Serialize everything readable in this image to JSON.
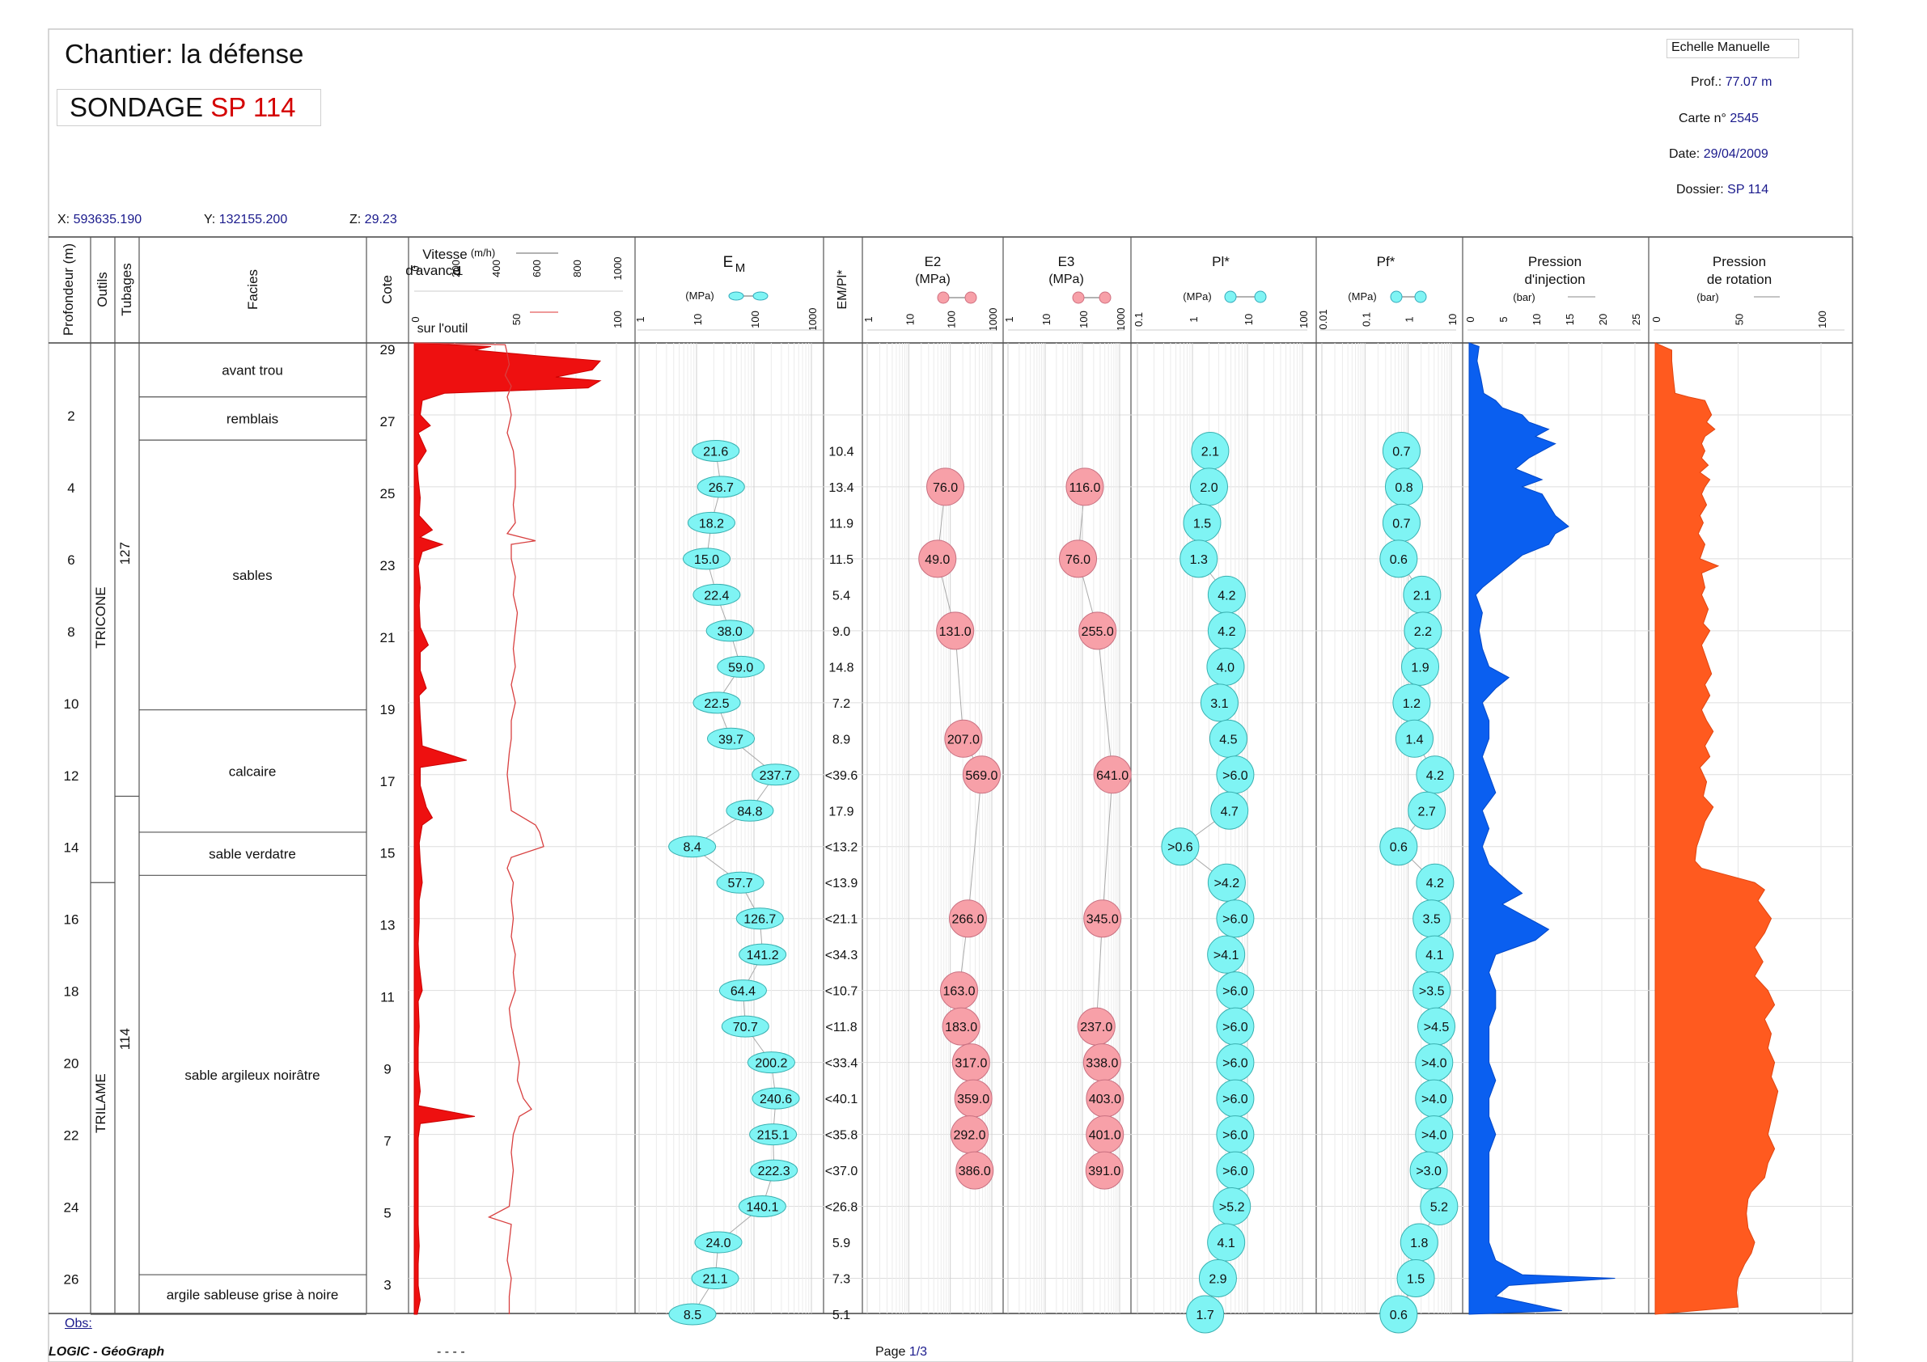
{
  "header": {
    "chantier": "Chantier: la défense",
    "sondage_prefix": "SONDAGE",
    "sondage_id": "SP 114",
    "echelle": "Echelle Manuelle",
    "prof_label": "Prof.:",
    "prof_value": "77.07 m",
    "carte_label": "Carte n°",
    "carte_value": "2545",
    "date_label": "Date:",
    "date_value": "29/04/2009",
    "dossier_label": "Dossier:",
    "dossier_value": "SP 114",
    "x_label": "X:",
    "x_value": "593635.190",
    "y_label": "Y:",
    "y_value": "132155.200",
    "z_label": "Z:",
    "z_value": "29.23"
  },
  "columns": {
    "profondeur": "Profondeur (m)",
    "outils": "Outils",
    "tubages": "Tubages",
    "facies": "Facies",
    "cote": "Cote",
    "vitesse_title": "Vitesse d'avance",
    "vitesse_unit": "(m/h)",
    "vitesse_sub": "1",
    "vitesse_ticks": [
      "0",
      "200",
      "400",
      "600",
      "800",
      "1000"
    ],
    "outil_label": "sur l'outil",
    "outil_ticks": [
      "0",
      "50",
      "100"
    ],
    "em_title": "E",
    "em_sub": "M",
    "em_unit": "(MPa)",
    "log_ticks_4": [
      "1",
      "10",
      "100",
      "1000"
    ],
    "empl_title": "EM/Pl*",
    "e2_title": "E2",
    "e2_unit": "(MPa)",
    "e3_title": "E3",
    "e3_unit": "(MPa)",
    "pl_title": "Pl*",
    "pl_unit": "(MPa)",
    "pl_ticks": [
      "0.1",
      "1",
      "10",
      "100"
    ],
    "pf_title": "Pf*",
    "pf_unit": "(MPa)",
    "pf_ticks": [
      "0.01",
      "0.1",
      "1",
      "10"
    ],
    "pinj_title1": "Pression",
    "pinj_title2": "d'injection",
    "pinj_unit": "(bar)",
    "pinj_ticks": [
      "0",
      "5",
      "10",
      "15",
      "20",
      "25"
    ],
    "prot_title1": "Pression",
    "prot_title2": "de rotation",
    "prot_unit": "(bar)",
    "prot_ticks": [
      "0",
      "50",
      "100"
    ]
  },
  "footer": {
    "obs": "Obs:",
    "software": "LOGIC - GéoGraph",
    "dashes": "- - - -",
    "page_label": "Page",
    "page_value": "1/3"
  },
  "chart_data": {
    "type": "table",
    "depth_range": [
      0,
      27
    ],
    "depth_ticks": [
      "2",
      "4",
      "6",
      "8",
      "10",
      "12",
      "14",
      "16",
      "18",
      "20",
      "22",
      "24",
      "26"
    ],
    "cote_ticks": [
      "29",
      "27",
      "25",
      "23",
      "21",
      "19",
      "17",
      "15",
      "13",
      "11",
      "9",
      "7",
      "5",
      "3"
    ],
    "outils": [
      {
        "name": "TRICONE",
        "from": 0,
        "to": 15
      },
      {
        "name": "TRILAME",
        "from": 15,
        "to": 27
      }
    ],
    "tubages": [
      {
        "name": "127",
        "from": 0,
        "to": 12.6
      },
      {
        "name": "114",
        "from": 12.6,
        "to": 27
      }
    ],
    "facies": [
      {
        "name": "avant trou",
        "from": 0,
        "to": 1.5
      },
      {
        "name": "remblais",
        "from": 1.5,
        "to": 2.7
      },
      {
        "name": "sables",
        "from": 2.7,
        "to": 10.2
      },
      {
        "name": "calcaire",
        "from": 10.2,
        "to": 13.6
      },
      {
        "name": "sable verdatre",
        "from": 13.6,
        "to": 14.8
      },
      {
        "name": "sable argileux noirâtre",
        "from": 14.8,
        "to": 25.9
      },
      {
        "name": "argile sableuse grise à noire",
        "from": 25.9,
        "to": 27
      }
    ],
    "pressiometer": [
      {
        "depth": 3,
        "em": "21.6",
        "ratio": "10.4",
        "e2": "",
        "e3": "",
        "pl": "2.1",
        "pf": "0.7"
      },
      {
        "depth": 4,
        "em": "26.7",
        "ratio": "13.4",
        "e2": "76.0",
        "e3": "116.0",
        "pl": "2.0",
        "pf": "0.8"
      },
      {
        "depth": 5,
        "em": "18.2",
        "ratio": "11.9",
        "e2": "",
        "e3": "",
        "pl": "1.5",
        "pf": "0.7"
      },
      {
        "depth": 6,
        "em": "15.0",
        "ratio": "11.5",
        "e2": "49.0",
        "e3": "76.0",
        "pl": "1.3",
        "pf": "0.6"
      },
      {
        "depth": 7,
        "em": "22.4",
        "ratio": "5.4",
        "e2": "",
        "e3": "",
        "pl": "4.2",
        "pf": "2.1"
      },
      {
        "depth": 8,
        "em": "38.0",
        "ratio": "9.0",
        "e2": "131.0",
        "e3": "255.0",
        "pl": "4.2",
        "pf": "2.2"
      },
      {
        "depth": 9,
        "em": "59.0",
        "ratio": "14.8",
        "e2": "",
        "e3": "",
        "pl": "4.0",
        "pf": "1.9"
      },
      {
        "depth": 10,
        "em": "22.5",
        "ratio": "7.2",
        "e2": "",
        "e3": "",
        "pl": "3.1",
        "pf": "1.2"
      },
      {
        "depth": 11,
        "em": "39.7",
        "ratio": "8.9",
        "e2": "207.0",
        "e3": "",
        "pl": "4.5",
        "pf": "1.4"
      },
      {
        "depth": 12,
        "em": "237.7",
        "ratio": "<39.6",
        "e2": "569.0",
        "e3": "641.0",
        "pl": ">6.0",
        "pf": "4.2"
      },
      {
        "depth": 13,
        "em": "84.8",
        "ratio": "17.9",
        "e2": "",
        "e3": "",
        "pl": "4.7",
        "pf": "2.7"
      },
      {
        "depth": 14,
        "em": "8.4",
        "ratio": "<13.2",
        "e2": "",
        "e3": "",
        "pl": ">0.6",
        "pf": "0.6"
      },
      {
        "depth": 15,
        "em": "57.7",
        "ratio": "<13.9",
        "e2": "",
        "e3": "",
        "pl": ">4.2",
        "pf": "4.2"
      },
      {
        "depth": 16,
        "em": "126.7",
        "ratio": "<21.1",
        "e2": "266.0",
        "e3": "345.0",
        "pl": ">6.0",
        "pf": "3.5"
      },
      {
        "depth": 17,
        "em": "141.2",
        "ratio": "<34.3",
        "e2": "",
        "e3": "",
        "pl": ">4.1",
        "pf": "4.1"
      },
      {
        "depth": 18,
        "em": "64.4",
        "ratio": "<10.7",
        "e2": "163.0",
        "e3": "",
        "pl": ">6.0",
        "pf": ">3.5"
      },
      {
        "depth": 19,
        "em": "70.7",
        "ratio": "<11.8",
        "e2": "183.0",
        "e3": "237.0",
        "pl": ">6.0",
        "pf": ">4.5"
      },
      {
        "depth": 20,
        "em": "200.2",
        "ratio": "<33.4",
        "e2": "317.0",
        "e3": "338.0",
        "pl": ">6.0",
        "pf": ">4.0"
      },
      {
        "depth": 21,
        "em": "240.6",
        "ratio": "<40.1",
        "e2": "359.0",
        "e3": "403.0",
        "pl": ">6.0",
        "pf": ">4.0"
      },
      {
        "depth": 22,
        "em": "215.1",
        "ratio": "<35.8",
        "e2": "292.0",
        "e3": "401.0",
        "pl": ">6.0",
        "pf": ">4.0"
      },
      {
        "depth": 23,
        "em": "222.3",
        "ratio": "<37.0",
        "e2": "386.0",
        "e3": "391.0",
        "pl": ">6.0",
        "pf": ">3.0"
      },
      {
        "depth": 24,
        "em": "140.1",
        "ratio": "<26.8",
        "e2": "",
        "e3": "",
        "pl": ">5.2",
        "pf": "5.2"
      },
      {
        "depth": 25,
        "em": "24.0",
        "ratio": "5.9",
        "e2": "",
        "e3": "",
        "pl": "4.1",
        "pf": "1.8"
      },
      {
        "depth": 26,
        "em": "21.1",
        "ratio": "7.3",
        "e2": "",
        "e3": "",
        "pl": "2.9",
        "pf": "1.5"
      },
      {
        "depth": 27,
        "em": "8.5",
        "ratio": "5.1",
        "e2": "",
        "e3": "",
        "pl": "1.7",
        "pf": "0.6"
      }
    ],
    "vitesse": [
      [
        0,
        0
      ],
      [
        0.1,
        380
      ],
      [
        0.2,
        300
      ],
      [
        0.35,
        600
      ],
      [
        0.5,
        920
      ],
      [
        0.75,
        880
      ],
      [
        0.95,
        700
      ],
      [
        1.05,
        920
      ],
      [
        1.25,
        860
      ],
      [
        1.4,
        150
      ],
      [
        1.6,
        40
      ],
      [
        2,
        30
      ],
      [
        2.3,
        80
      ],
      [
        2.5,
        20
      ],
      [
        3,
        60
      ],
      [
        3.4,
        15
      ],
      [
        3.8,
        20
      ],
      [
        4.3,
        30
      ],
      [
        4.8,
        25
      ],
      [
        5.2,
        90
      ],
      [
        5.4,
        30
      ],
      [
        5.6,
        140
      ],
      [
        5.8,
        40
      ],
      [
        6.2,
        20
      ],
      [
        6.8,
        30
      ],
      [
        7.3,
        25
      ],
      [
        7.9,
        30
      ],
      [
        8.4,
        70
      ],
      [
        8.6,
        30
      ],
      [
        9.1,
        30
      ],
      [
        9.6,
        60
      ],
      [
        9.8,
        25
      ],
      [
        10.4,
        30
      ],
      [
        11.2,
        40
      ],
      [
        11.6,
        260
      ],
      [
        11.8,
        30
      ],
      [
        12.3,
        30
      ],
      [
        12.9,
        60
      ],
      [
        13.2,
        90
      ],
      [
        13.4,
        40
      ],
      [
        13.9,
        25
      ],
      [
        14.4,
        30
      ],
      [
        15,
        40
      ],
      [
        15.5,
        25
      ],
      [
        16.1,
        25
      ],
      [
        16.7,
        20
      ],
      [
        17.3,
        25
      ],
      [
        18,
        40
      ],
      [
        18.3,
        20
      ],
      [
        19,
        25
      ],
      [
        19.6,
        20
      ],
      [
        20.2,
        20
      ],
      [
        20.8,
        30
      ],
      [
        21.2,
        20
      ],
      [
        21.5,
        300
      ],
      [
        21.7,
        30
      ],
      [
        22.1,
        20
      ],
      [
        22.7,
        20
      ],
      [
        23.3,
        20
      ],
      [
        23.9,
        20
      ],
      [
        24.5,
        20
      ],
      [
        25.1,
        25
      ],
      [
        25.6,
        20
      ],
      [
        26.2,
        20
      ],
      [
        26.6,
        30
      ],
      [
        27,
        15
      ]
    ],
    "couple": [
      [
        0,
        0
      ],
      [
        0.05,
        45
      ],
      [
        0.3,
        46
      ],
      [
        0.6,
        47
      ],
      [
        0.9,
        45
      ],
      [
        1.2,
        48
      ],
      [
        1.5,
        46
      ],
      [
        1.7,
        47
      ],
      [
        2,
        48
      ],
      [
        2.5,
        46
      ],
      [
        3,
        49
      ],
      [
        3.5,
        50
      ],
      [
        4,
        50
      ],
      [
        4.5,
        49
      ],
      [
        5,
        50
      ],
      [
        5.3,
        46
      ],
      [
        5.5,
        60
      ],
      [
        5.6,
        48
      ],
      [
        6,
        48
      ],
      [
        6.5,
        50
      ],
      [
        7,
        49
      ],
      [
        7.5,
        51
      ],
      [
        8,
        50
      ],
      [
        8.5,
        49
      ],
      [
        9,
        50
      ],
      [
        9.5,
        48
      ],
      [
        10,
        50
      ],
      [
        10.5,
        48
      ],
      [
        11,
        48
      ],
      [
        11.4,
        47
      ],
      [
        12,
        46
      ],
      [
        12.5,
        47
      ],
      [
        13,
        48
      ],
      [
        13.4,
        60
      ],
      [
        13.6,
        62
      ],
      [
        14,
        64
      ],
      [
        14.3,
        48
      ],
      [
        14.6,
        46
      ],
      [
        15,
        49
      ],
      [
        15.5,
        48
      ],
      [
        16,
        49
      ],
      [
        16.5,
        48
      ],
      [
        17,
        50
      ],
      [
        17.5,
        49
      ],
      [
        18,
        50
      ],
      [
        18.5,
        47
      ],
      [
        19,
        48
      ],
      [
        19.5,
        50
      ],
      [
        20,
        52
      ],
      [
        20.5,
        51
      ],
      [
        21,
        54
      ],
      [
        21.3,
        58
      ],
      [
        21.5,
        52
      ],
      [
        22,
        49
      ],
      [
        22.5,
        48
      ],
      [
        23,
        49
      ],
      [
        23.5,
        48
      ],
      [
        24,
        47
      ],
      [
        24.3,
        37
      ],
      [
        24.5,
        48
      ],
      [
        25,
        47
      ],
      [
        25.5,
        46
      ],
      [
        26,
        48
      ],
      [
        26.5,
        47
      ],
      [
        27,
        47
      ]
    ],
    "pression_injection": [
      [
        0,
        0
      ],
      [
        0.1,
        1.5
      ],
      [
        0.5,
        1.2
      ],
      [
        1,
        1.8
      ],
      [
        1.4,
        2.2
      ],
      [
        1.6,
        4
      ],
      [
        1.8,
        5
      ],
      [
        2,
        8
      ],
      [
        2.2,
        9
      ],
      [
        2.4,
        12
      ],
      [
        2.6,
        10
      ],
      [
        2.8,
        13
      ],
      [
        3,
        11
      ],
      [
        3.2,
        9
      ],
      [
        3.5,
        7
      ],
      [
        3.8,
        11
      ],
      [
        4,
        8
      ],
      [
        4.2,
        11
      ],
      [
        4.5,
        12
      ],
      [
        4.8,
        13
      ],
      [
        5.1,
        15
      ],
      [
        5.3,
        13
      ],
      [
        5.6,
        12
      ],
      [
        5.9,
        8
      ],
      [
        6.2,
        6
      ],
      [
        6.5,
        4
      ],
      [
        6.8,
        2
      ],
      [
        7,
        1
      ],
      [
        7.5,
        2
      ],
      [
        8,
        1.5
      ],
      [
        8.5,
        2
      ],
      [
        9,
        3
      ],
      [
        9.3,
        6
      ],
      [
        9.6,
        4
      ],
      [
        10,
        2
      ],
      [
        10.5,
        3
      ],
      [
        11,
        3
      ],
      [
        11.5,
        2
      ],
      [
        12,
        3
      ],
      [
        12.5,
        4
      ],
      [
        13,
        2
      ],
      [
        13.5,
        3
      ],
      [
        14,
        2
      ],
      [
        14.5,
        3
      ],
      [
        15,
        6
      ],
      [
        15.3,
        8
      ],
      [
        15.6,
        5
      ],
      [
        16,
        9
      ],
      [
        16.3,
        12
      ],
      [
        16.6,
        10
      ],
      [
        17,
        4
      ],
      [
        17.5,
        3
      ],
      [
        18,
        4
      ],
      [
        18.5,
        4
      ],
      [
        19,
        3
      ],
      [
        19.5,
        3
      ],
      [
        20,
        3
      ],
      [
        20.5,
        4
      ],
      [
        21,
        3
      ],
      [
        21.5,
        3
      ],
      [
        22,
        4
      ],
      [
        22.5,
        3
      ],
      [
        23,
        3
      ],
      [
        23.5,
        3
      ],
      [
        24,
        3
      ],
      [
        24.5,
        3
      ],
      [
        25,
        3
      ],
      [
        25.5,
        4
      ],
      [
        25.9,
        8
      ],
      [
        26,
        22
      ],
      [
        26.2,
        6
      ],
      [
        26.5,
        4
      ],
      [
        26.7,
        9
      ],
      [
        26.9,
        14
      ],
      [
        27,
        0
      ]
    ],
    "pression_rotation": [
      [
        0,
        0
      ],
      [
        0.2,
        10
      ],
      [
        0.5,
        10
      ],
      [
        1,
        11
      ],
      [
        1.4,
        12
      ],
      [
        1.5,
        20
      ],
      [
        1.6,
        30
      ],
      [
        1.8,
        32
      ],
      [
        2,
        34
      ],
      [
        2.2,
        31
      ],
      [
        2.4,
        36
      ],
      [
        2.6,
        30
      ],
      [
        2.8,
        28
      ],
      [
        3,
        30
      ],
      [
        3.2,
        28
      ],
      [
        3.4,
        32
      ],
      [
        3.6,
        27
      ],
      [
        3.8,
        33
      ],
      [
        4,
        30
      ],
      [
        4.2,
        28
      ],
      [
        4.5,
        31
      ],
      [
        4.8,
        27
      ],
      [
        5,
        29
      ],
      [
        5.3,
        26
      ],
      [
        5.6,
        30
      ],
      [
        6,
        27
      ],
      [
        6.2,
        38
      ],
      [
        6.4,
        28
      ],
      [
        6.8,
        30
      ],
      [
        7,
        28
      ],
      [
        7.4,
        32
      ],
      [
        7.8,
        29
      ],
      [
        8,
        33
      ],
      [
        8.4,
        28
      ],
      [
        8.8,
        31
      ],
      [
        9.2,
        34
      ],
      [
        9.5,
        30
      ],
      [
        9.8,
        33
      ],
      [
        10.2,
        28
      ],
      [
        10.5,
        31
      ],
      [
        10.8,
        35
      ],
      [
        11.2,
        30
      ],
      [
        11.5,
        33
      ],
      [
        11.8,
        27
      ],
      [
        12.2,
        31
      ],
      [
        12.6,
        29
      ],
      [
        12.9,
        35
      ],
      [
        13.3,
        30
      ],
      [
        13.6,
        28
      ],
      [
        14,
        25
      ],
      [
        14.4,
        24
      ],
      [
        14.6,
        28
      ],
      [
        14.8,
        44
      ],
      [
        15,
        60
      ],
      [
        15.2,
        66
      ],
      [
        15.5,
        62
      ],
      [
        16,
        70
      ],
      [
        16.4,
        66
      ],
      [
        16.8,
        60
      ],
      [
        17.2,
        65
      ],
      [
        17.6,
        60
      ],
      [
        18,
        68
      ],
      [
        18.4,
        72
      ],
      [
        18.8,
        66
      ],
      [
        19.2,
        70
      ],
      [
        19.6,
        68
      ],
      [
        20,
        72
      ],
      [
        20.4,
        70
      ],
      [
        20.8,
        74
      ],
      [
        21.2,
        72
      ],
      [
        21.6,
        70
      ],
      [
        22,
        68
      ],
      [
        22.4,
        72
      ],
      [
        22.8,
        68
      ],
      [
        23.2,
        66
      ],
      [
        23.6,
        58
      ],
      [
        23.8,
        56
      ],
      [
        24.2,
        55
      ],
      [
        24.6,
        56
      ],
      [
        25,
        60
      ],
      [
        25.3,
        58
      ],
      [
        25.6,
        54
      ],
      [
        26,
        50
      ],
      [
        26.4,
        49
      ],
      [
        26.8,
        50
      ],
      [
        27,
        0
      ]
    ]
  }
}
